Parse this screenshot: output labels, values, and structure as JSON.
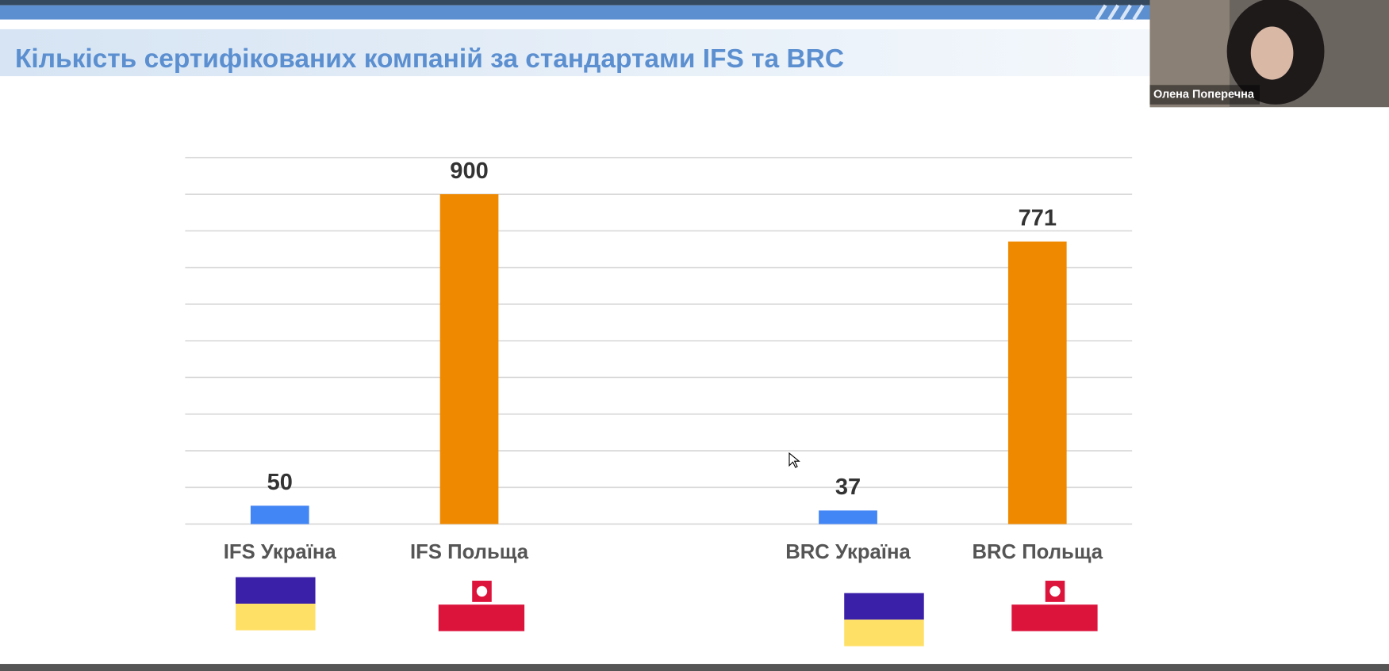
{
  "chart_data": {
    "type": "bar",
    "title": "Кількість сертифікованих компаній за стандартами IFS та BRC",
    "categories": [
      "IFS Україна",
      "IFS Польща",
      null,
      "BRC Україна",
      "BRC Польща"
    ],
    "values": [
      50,
      900,
      null,
      37,
      771
    ],
    "colors": [
      "#4285f4",
      "#ef8a00",
      null,
      "#4285f4",
      "#ef8a00"
    ],
    "ylim": [
      0,
      1000
    ],
    "yticks": [
      0,
      100,
      200,
      300,
      400,
      500,
      600,
      700,
      800,
      900,
      1000
    ],
    "grid": true
  },
  "video": {
    "participant_name": "Олена Поперечна"
  }
}
